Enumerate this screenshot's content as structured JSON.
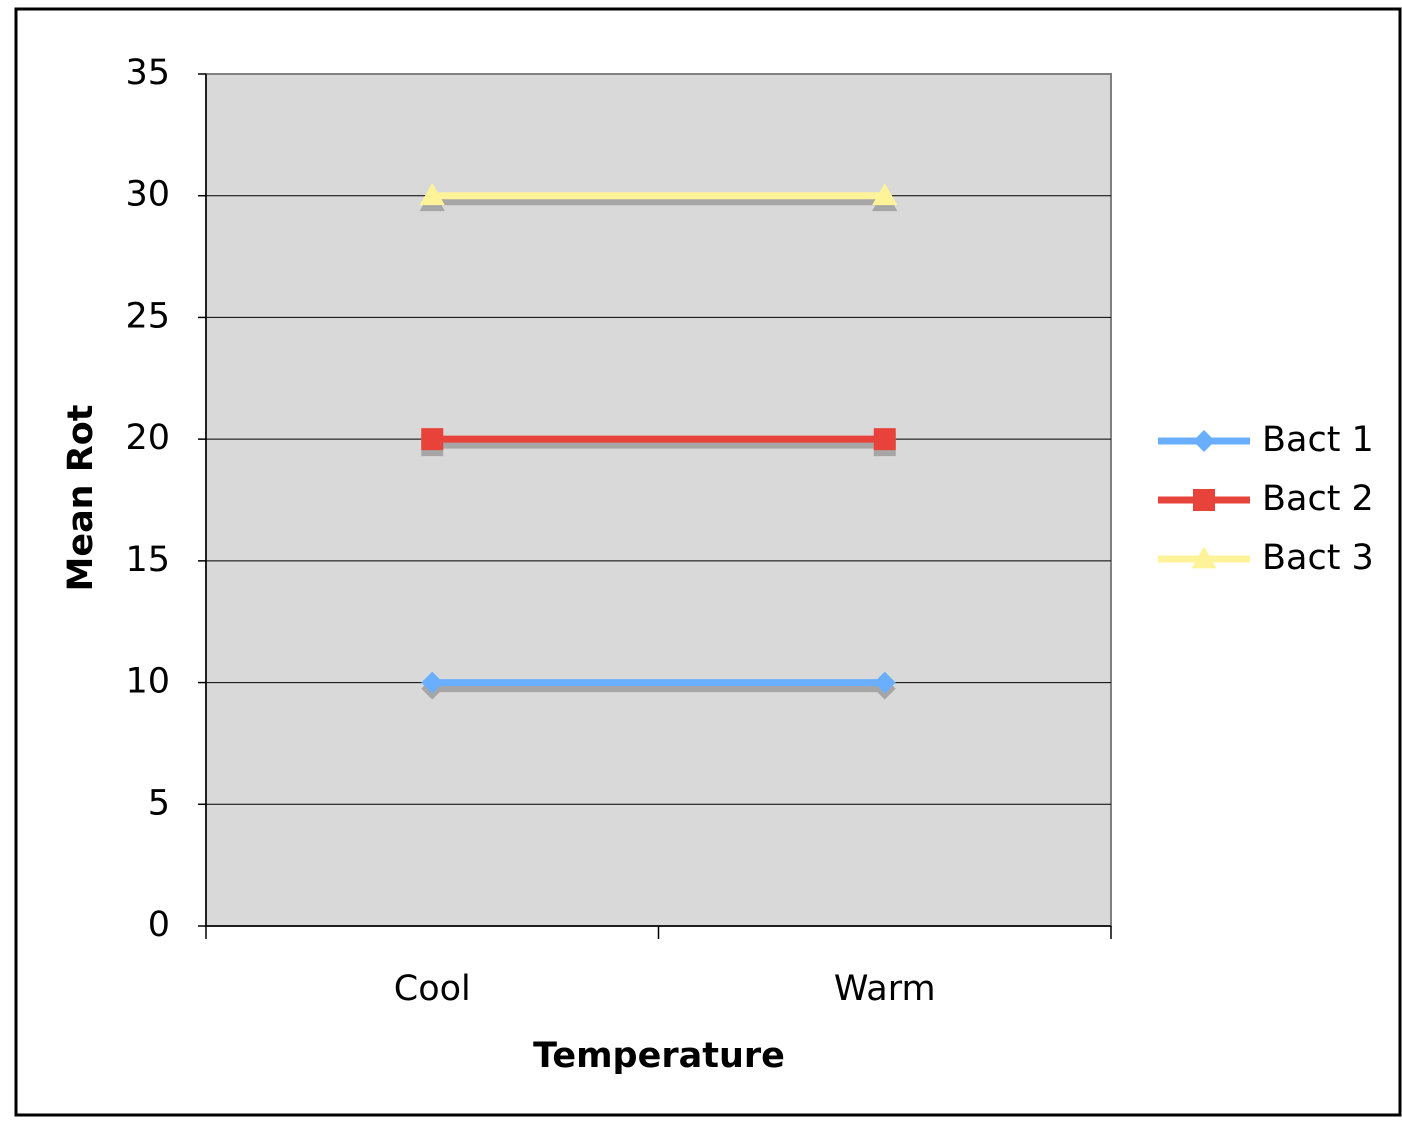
{
  "chart_data": {
    "type": "line",
    "title": "",
    "xlabel": "Temperature",
    "ylabel": "Mean Rot",
    "categories": [
      "Cool",
      "Warm"
    ],
    "ylim": [
      0,
      35
    ],
    "yticks": [
      0,
      5,
      10,
      15,
      20,
      25,
      30,
      35
    ],
    "grid": true,
    "legend_position": "right",
    "plot_background": "#d9d9d9",
    "series": [
      {
        "name": "Bact 1",
        "values": [
          10,
          10
        ],
        "color": "#6aafff",
        "marker": "diamond"
      },
      {
        "name": "Bact 2",
        "values": [
          20,
          20
        ],
        "color": "#e8433b",
        "marker": "square"
      },
      {
        "name": "Bact 3",
        "values": [
          30,
          30
        ],
        "color": "#fff39a",
        "marker": "triangle"
      }
    ]
  }
}
